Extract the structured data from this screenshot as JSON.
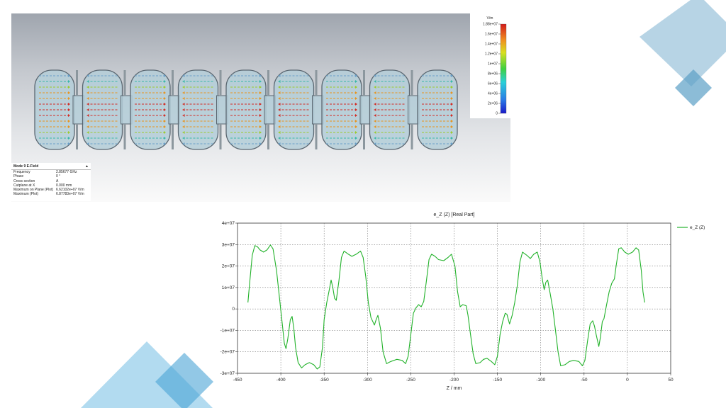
{
  "background_decoration": {
    "accent_colors": [
      "#9fc6dc",
      "#4aa4d6",
      "#76b4d8"
    ]
  },
  "simulation_view": {
    "cell_count": 9,
    "field_colors": [
      "#d22a22",
      "#e8941e",
      "#9ccc2a",
      "#37b8a9",
      "#6aa0c8"
    ],
    "info": {
      "title": "Mode 9 E-Field",
      "rows": [
        {
          "key": "Frequency",
          "value": "2.85677 GHz"
        },
        {
          "key": "Phase",
          "value": "0 °"
        },
        {
          "key": "Cross section",
          "value": "A"
        },
        {
          "key": "Cutplane at X",
          "value": "0.000 mm"
        },
        {
          "key": "Maximum on Plane (Plot)",
          "value": "6.62102e+07 V/m"
        },
        {
          "key": "Maximum (Plot)",
          "value": "6.87783e+07 V/m"
        }
      ]
    },
    "colorbar": {
      "unit": "V/m",
      "ticks": [
        "1.88e+07",
        "1.6e+07",
        "1.4e+07",
        "1.2e+07",
        "1e+07",
        "8e+06",
        "6e+06",
        "4e+06",
        "2e+06",
        "0"
      ]
    }
  },
  "chart_data": {
    "type": "line",
    "title": "e_Z (Z) [Real Part]",
    "xlabel": "Z / mm",
    "ylabel": "",
    "xlim": [
      -450,
      50
    ],
    "ylim": [
      -30000000,
      40000000
    ],
    "xticks": [
      "-450",
      "-400",
      "-350",
      "-300",
      "-250",
      "-200",
      "-150",
      "-100",
      "-50",
      "0",
      "50"
    ],
    "yticks": [
      "-3e+07",
      "-2e+07",
      "-1e+07",
      "0",
      "1e+07",
      "2e+07",
      "3e+07",
      "4e+07"
    ],
    "grid": true,
    "legend_position": "top-right",
    "series": [
      {
        "name": "e_Z (Z)",
        "color": "#22b22a",
        "points": [
          [
            -438,
            3000000
          ],
          [
            -436,
            12000000
          ],
          [
            -433,
            25000000
          ],
          [
            -430,
            29500000
          ],
          [
            -427,
            29000000
          ],
          [
            -424,
            27500000
          ],
          [
            -420,
            26500000
          ],
          [
            -416,
            27500000
          ],
          [
            -412,
            29800000
          ],
          [
            -409,
            28000000
          ],
          [
            -405,
            18000000
          ],
          [
            -401,
            3000000
          ],
          [
            -398,
            -8000000
          ],
          [
            -396,
            -16000000
          ],
          [
            -394,
            -18500000
          ],
          [
            -392,
            -14000000
          ],
          [
            -389,
            -5000000
          ],
          [
            -387,
            -3500000
          ],
          [
            -385,
            -9000000
          ],
          [
            -383,
            -18000000
          ],
          [
            -380,
            -25000000
          ],
          [
            -376,
            -27500000
          ],
          [
            -372,
            -26000000
          ],
          [
            -367,
            -25000000
          ],
          [
            -362,
            -26000000
          ],
          [
            -358,
            -28000000
          ],
          [
            -355,
            -27000000
          ],
          [
            -352,
            -18000000
          ],
          [
            -350,
            -5000000
          ],
          [
            -347,
            3000000
          ],
          [
            -344,
            9000000
          ],
          [
            -342,
            13500000
          ],
          [
            -340,
            10000000
          ],
          [
            -338,
            5000000
          ],
          [
            -336,
            4000000
          ],
          [
            -333,
            13000000
          ],
          [
            -330,
            24000000
          ],
          [
            -327,
            27000000
          ],
          [
            -322,
            25500000
          ],
          [
            -318,
            24500000
          ],
          [
            -313,
            25500000
          ],
          [
            -308,
            27000000
          ],
          [
            -305,
            24000000
          ],
          [
            -302,
            15000000
          ],
          [
            -299,
            3000000
          ],
          [
            -296,
            -4000000
          ],
          [
            -292,
            -7500000
          ],
          [
            -290,
            -5000000
          ],
          [
            -288,
            -3000000
          ],
          [
            -285,
            -9000000
          ],
          [
            -282,
            -20000000
          ],
          [
            -278,
            -25500000
          ],
          [
            -273,
            -24500000
          ],
          [
            -266,
            -23500000
          ],
          [
            -260,
            -24000000
          ],
          [
            -256,
            -25500000
          ],
          [
            -253,
            -22000000
          ],
          [
            -250,
            -12000000
          ],
          [
            -247,
            -2000000
          ],
          [
            -244,
            500000
          ],
          [
            -241,
            2000000
          ],
          [
            -238,
            1000000
          ],
          [
            -235,
            3500000
          ],
          [
            -232,
            13000000
          ],
          [
            -229,
            23000000
          ],
          [
            -226,
            25500000
          ],
          [
            -222,
            24500000
          ],
          [
            -218,
            23000000
          ],
          [
            -212,
            22500000
          ],
          [
            -207,
            24000000
          ],
          [
            -203,
            25500000
          ],
          [
            -199,
            20000000
          ],
          [
            -196,
            8000000
          ],
          [
            -193,
            1000000
          ],
          [
            -190,
            2000000
          ],
          [
            -186,
            1500000
          ],
          [
            -184,
            -3000000
          ],
          [
            -181,
            -12000000
          ],
          [
            -178,
            -21000000
          ],
          [
            -175,
            -25500000
          ],
          [
            -170,
            -25000000
          ],
          [
            -166,
            -23500000
          ],
          [
            -162,
            -23000000
          ],
          [
            -157,
            -24500000
          ],
          [
            -153,
            -26000000
          ],
          [
            -150,
            -22000000
          ],
          [
            -147,
            -12000000
          ],
          [
            -144,
            -6000000
          ],
          [
            -141,
            -2000000
          ],
          [
            -139,
            -2500000
          ],
          [
            -136,
            -7000000
          ],
          [
            -133,
            -3000000
          ],
          [
            -130,
            3000000
          ],
          [
            -127,
            11000000
          ],
          [
            -124,
            22000000
          ],
          [
            -121,
            26500000
          ],
          [
            -116,
            25000000
          ],
          [
            -112,
            23500000
          ],
          [
            -108,
            25500000
          ],
          [
            -104,
            26500000
          ],
          [
            -101,
            22000000
          ],
          [
            -98,
            13500000
          ],
          [
            -96,
            9000000
          ],
          [
            -94,
            12500000
          ],
          [
            -92,
            13500000
          ],
          [
            -89,
            7000000
          ],
          [
            -86,
            0
          ],
          [
            -83,
            -10000000
          ],
          [
            -80,
            -20000000
          ],
          [
            -77,
            -26500000
          ],
          [
            -72,
            -26000000
          ],
          [
            -67,
            -24500000
          ],
          [
            -62,
            -24000000
          ],
          [
            -56,
            -24500000
          ],
          [
            -52,
            -26500000
          ],
          [
            -49,
            -24000000
          ],
          [
            -46,
            -15000000
          ],
          [
            -43,
            -7000000
          ],
          [
            -40,
            -5500000
          ],
          [
            -38,
            -8000000
          ],
          [
            -36,
            -12000000
          ],
          [
            -33,
            -17500000
          ],
          [
            -31,
            -13000000
          ],
          [
            -29,
            -6000000
          ],
          [
            -27,
            -4500000
          ],
          [
            -24,
            2000000
          ],
          [
            -21,
            8000000
          ],
          [
            -18,
            12000000
          ],
          [
            -15,
            14000000
          ],
          [
            -13,
            20000000
          ],
          [
            -10,
            28000000
          ],
          [
            -7,
            28500000
          ],
          [
            -3,
            26500000
          ],
          [
            1,
            25500000
          ],
          [
            6,
            26500000
          ],
          [
            10,
            28500000
          ],
          [
            13,
            27500000
          ],
          [
            16,
            18000000
          ],
          [
            18,
            8000000
          ],
          [
            20,
            3000000
          ]
        ]
      }
    ]
  }
}
